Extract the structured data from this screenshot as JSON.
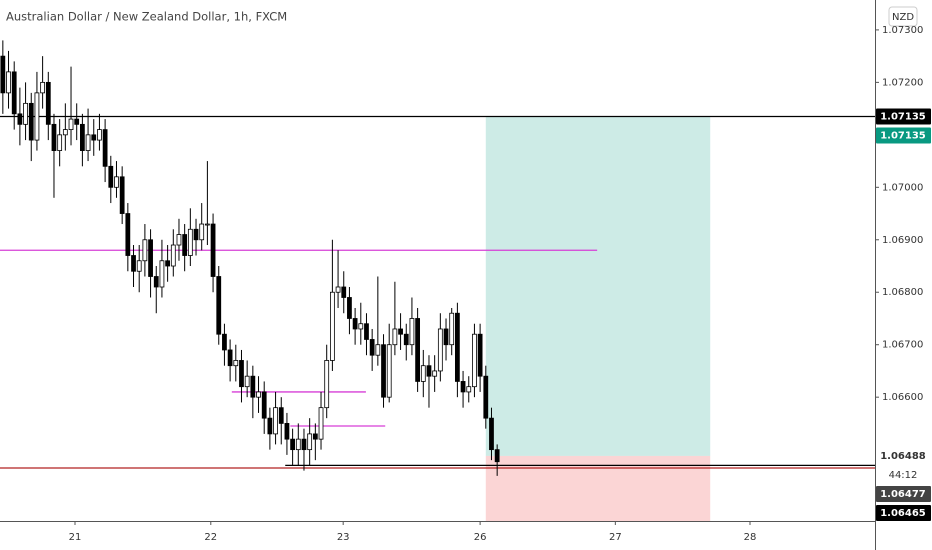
{
  "chart_data": {
    "type": "candlestick",
    "title": "Australian Dollar / New Zealand Dollar, 1h, FXCM",
    "currency": "NZD",
    "xlim": [
      -0.5,
      153.5
    ],
    "xticks": [
      {
        "value": 12.7,
        "label": "21"
      },
      {
        "value": 36.6,
        "label": "22"
      },
      {
        "value": 59.9,
        "label": "23"
      },
      {
        "value": 84.0,
        "label": "26"
      },
      {
        "value": 107.8,
        "label": "27"
      },
      {
        "value": 131.5,
        "label": "28"
      }
    ],
    "ylim": [
      1.06364,
      1.07357
    ],
    "yticks": [
      {
        "value": 1.073,
        "label": "1.07300"
      },
      {
        "value": 1.072,
        "label": "1.07200"
      },
      {
        "value": 1.071,
        "label": "1.07100"
      },
      {
        "value": 1.07,
        "label": "1.07000"
      },
      {
        "value": 1.069,
        "label": "1.06900"
      },
      {
        "value": 1.068,
        "label": "1.06800"
      },
      {
        "value": 1.067,
        "label": "1.06700"
      },
      {
        "value": 1.066,
        "label": "1.06600"
      }
    ],
    "x": [
      0,
      1,
      2,
      3,
      4,
      5,
      6,
      7,
      8,
      9,
      10,
      11,
      12,
      13,
      14,
      15,
      16,
      17,
      18,
      19,
      20,
      21,
      22,
      23,
      24,
      25,
      26,
      27,
      28,
      29,
      30,
      31,
      32,
      33,
      34,
      35,
      36,
      37,
      38,
      39,
      40,
      41,
      42,
      43,
      44,
      45,
      46,
      47,
      48,
      49,
      50,
      51,
      52,
      53,
      54,
      55,
      56,
      57,
      58,
      59,
      60,
      61,
      62,
      63,
      64,
      65,
      66,
      67,
      68,
      69,
      70,
      71,
      72,
      73,
      74,
      75,
      76,
      77,
      78,
      79,
      80,
      81,
      82,
      83,
      84,
      85,
      86,
      87
    ],
    "open": [
      1.0725,
      1.0718,
      1.0722,
      1.0714,
      1.0712,
      1.0716,
      1.0709,
      1.0718,
      1.072,
      1.0712,
      1.0707,
      1.071,
      1.0711,
      1.0713,
      1.0712,
      1.0707,
      1.071,
      1.0709,
      1.0711,
      1.0704,
      1.07,
      1.0702,
      1.0695,
      1.0687,
      1.0684,
      1.0686,
      1.069,
      1.0683,
      1.0681,
      1.0686,
      1.0685,
      1.0689,
      1.0691,
      1.0687,
      1.0692,
      1.069,
      1.0693,
      1.0693,
      1.0683,
      1.0672,
      1.0669,
      1.0666,
      1.0667,
      1.0662,
      1.0664,
      1.066,
      1.0661,
      1.0656,
      1.0653,
      1.0658,
      1.0655,
      1.0652,
      1.065,
      1.0652,
      1.065,
      1.0653,
      1.0652,
      1.0658,
      1.0667,
      1.068,
      1.0681,
      1.0679,
      1.0675,
      1.0673,
      1.0674,
      1.0671,
      1.0668,
      1.067,
      1.066,
      1.067,
      1.0673,
      1.0672,
      1.067,
      1.0675,
      1.0663,
      1.0666,
      1.0664,
      1.0665,
      1.0673,
      1.067,
      1.0676,
      1.0663,
      1.0661,
      1.0662,
      1.0672,
      1.0664,
      1.0656,
      1.065
    ],
    "high": [
      1.0728,
      1.0726,
      1.0724,
      1.0719,
      1.072,
      1.0718,
      1.0722,
      1.0725,
      1.0722,
      1.0714,
      1.0713,
      1.0716,
      1.0723,
      1.0716,
      1.0714,
      1.0715,
      1.0713,
      1.0714,
      1.0713,
      1.0706,
      1.0705,
      1.0704,
      1.0697,
      1.0689,
      1.0689,
      1.0693,
      1.0692,
      1.0685,
      1.069,
      1.0689,
      1.0692,
      1.0694,
      1.0693,
      1.0696,
      1.0694,
      1.0697,
      1.0705,
      1.0695,
      1.0685,
      1.0674,
      1.0671,
      1.067,
      1.0669,
      1.0667,
      1.0666,
      1.0664,
      1.0663,
      1.0658,
      1.0661,
      1.066,
      1.0657,
      1.0654,
      1.0655,
      1.0654,
      1.0656,
      1.0655,
      1.0661,
      1.067,
      1.069,
      1.0688,
      1.0684,
      1.0681,
      1.0677,
      1.0678,
      1.0676,
      1.0673,
      1.0683,
      1.0672,
      1.0674,
      1.0682,
      1.0676,
      1.0674,
      1.0679,
      1.0677,
      1.0669,
      1.0668,
      1.0668,
      1.0676,
      1.0675,
      1.0677,
      1.0678,
      1.0665,
      1.0664,
      1.0674,
      1.0674,
      1.0666,
      1.0658,
      1.0651
    ],
    "low": [
      1.0714,
      1.0715,
      1.0711,
      1.0708,
      1.0709,
      1.0705,
      1.0707,
      1.0715,
      1.0709,
      1.0698,
      1.0704,
      1.0707,
      1.0708,
      1.0709,
      1.0704,
      1.0705,
      1.0706,
      1.0707,
      1.0701,
      1.0697,
      1.0698,
      1.0693,
      1.0684,
      1.0681,
      1.068,
      1.0683,
      1.0679,
      1.0676,
      1.0679,
      1.0682,
      1.0683,
      1.0686,
      1.0684,
      1.0685,
      1.0687,
      1.0688,
      1.0689,
      1.068,
      1.067,
      1.0666,
      1.0663,
      1.0663,
      1.0659,
      1.066,
      1.0656,
      1.0657,
      1.0653,
      1.065,
      1.0651,
      1.0651,
      1.0649,
      1.0647,
      1.0647,
      1.0646,
      1.0647,
      1.0648,
      1.065,
      1.0656,
      1.0665,
      1.0677,
      1.0676,
      1.0672,
      1.067,
      1.067,
      1.0668,
      1.0665,
      1.0666,
      1.0658,
      1.0659,
      1.0668,
      1.0669,
      1.0667,
      1.0668,
      1.0661,
      1.066,
      1.0658,
      1.0661,
      1.0663,
      1.0667,
      1.0668,
      1.066,
      1.0658,
      1.0659,
      1.066,
      1.0661,
      1.0654,
      1.0648,
      1.0645
    ],
    "close": [
      1.0718,
      1.0722,
      1.0714,
      1.0712,
      1.0716,
      1.0709,
      1.0718,
      1.072,
      1.0712,
      1.0707,
      1.071,
      1.0711,
      1.0713,
      1.0712,
      1.0707,
      1.071,
      1.0709,
      1.0711,
      1.0704,
      1.07,
      1.0702,
      1.0695,
      1.0687,
      1.0684,
      1.0686,
      1.069,
      1.0683,
      1.0681,
      1.0686,
      1.0685,
      1.0689,
      1.0691,
      1.0687,
      1.0692,
      1.069,
      1.0693,
      1.0693,
      1.0683,
      1.0672,
      1.0669,
      1.0666,
      1.0667,
      1.0662,
      1.0664,
      1.066,
      1.0661,
      1.0656,
      1.0653,
      1.0658,
      1.0655,
      1.0652,
      1.065,
      1.0652,
      1.065,
      1.0653,
      1.0652,
      1.0658,
      1.0667,
      1.068,
      1.0681,
      1.0679,
      1.0675,
      1.0673,
      1.0674,
      1.0671,
      1.0668,
      1.067,
      1.066,
      1.067,
      1.0673,
      1.0672,
      1.067,
      1.0675,
      1.0663,
      1.0666,
      1.0664,
      1.0665,
      1.0673,
      1.067,
      1.0676,
      1.0663,
      1.0661,
      1.0662,
      1.0672,
      1.0664,
      1.0656,
      1.065,
      1.06477
    ],
    "up_color": "#ffffff",
    "down_color": "#000000",
    "position": {
      "x": [
        85,
        124.5
      ],
      "entry": 1.06488,
      "target": 1.07135,
      "stop": 1.06364,
      "profit_color": "#cdebe6",
      "loss_color": "#fbd5d5"
    },
    "lines": [
      {
        "value": 1.07135,
        "x": [
          -0.5,
          153.5
        ],
        "color": "#000000"
      },
      {
        "value": 1.0688,
        "x": [
          -0.5,
          104.6
        ],
        "color": "#d63fd6"
      },
      {
        "value": 1.0661,
        "x": [
          40.3,
          63.9
        ],
        "color": "#d63fd6"
      },
      {
        "value": 1.06545,
        "x": [
          50.6,
          67.3
        ],
        "color": "#d63fd6"
      },
      {
        "value": 1.0647,
        "x": [
          49.7,
          153.5
        ],
        "color": "#000000"
      },
      {
        "value": 1.06465,
        "x": [
          -0.5,
          153.5
        ],
        "color": "#b22222"
      }
    ],
    "tags": [
      {
        "value": 1.07135,
        "label": "1.07135",
        "color": "#000000",
        "text_color": "#ffffff"
      },
      {
        "value": 1.07135,
        "label": "1.07135",
        "color": "#089981",
        "text_color": "#ffffff"
      },
      {
        "value": 1.06488,
        "label": "1.06488",
        "color": "#ffffff",
        "text_color": "#333333"
      },
      {
        "value": 1.06477,
        "label": "1.06477",
        "color": "#444444",
        "text_color": "#ffffff"
      },
      {
        "value": 1.06465,
        "label": "1.06465",
        "color": "#000000",
        "text_color": "#ffffff"
      }
    ],
    "countdown": "44:12"
  }
}
